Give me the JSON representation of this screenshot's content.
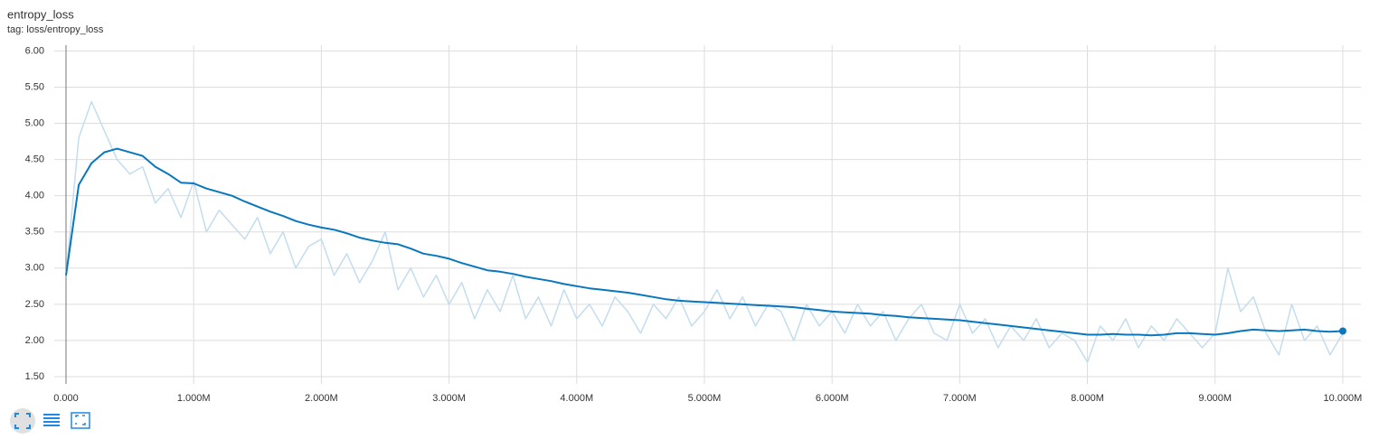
{
  "chart_data": {
    "type": "line",
    "title": "entropy_loss",
    "subtitle": "tag: loss/entropy_loss",
    "x": [
      0,
      100000,
      200000,
      300000,
      400000,
      500000,
      600000,
      700000,
      800000,
      900000,
      1000000,
      1100000,
      1200000,
      1300000,
      1400000,
      1500000,
      1600000,
      1700000,
      1800000,
      1900000,
      2000000,
      2100000,
      2200000,
      2300000,
      2400000,
      2500000,
      2600000,
      2700000,
      2800000,
      2900000,
      3000000,
      3100000,
      3200000,
      3300000,
      3400000,
      3500000,
      3600000,
      3700000,
      3800000,
      3900000,
      4000000,
      4100000,
      4200000,
      4300000,
      4400000,
      4500000,
      4600000,
      4700000,
      4800000,
      4900000,
      5000000,
      5100000,
      5200000,
      5300000,
      5400000,
      5500000,
      5600000,
      5700000,
      5800000,
      5900000,
      6000000,
      6100000,
      6200000,
      6300000,
      6400000,
      6500000,
      6600000,
      6700000,
      6800000,
      6900000,
      7000000,
      7100000,
      7200000,
      7300000,
      7400000,
      7500000,
      7600000,
      7700000,
      7800000,
      7900000,
      8000000,
      8100000,
      8200000,
      8300000,
      8400000,
      8500000,
      8600000,
      8700000,
      8800000,
      8900000,
      9000000,
      9100000,
      9200000,
      9300000,
      9400000,
      9500000,
      9600000,
      9700000,
      9800000,
      9900000,
      10000000
    ],
    "series": [
      {
        "color": "#c3ddee",
        "values": [
          2.9,
          4.8,
          5.3,
          4.9,
          4.5,
          4.3,
          4.4,
          3.9,
          4.1,
          3.7,
          4.2,
          3.5,
          3.8,
          3.6,
          3.4,
          3.7,
          3.2,
          3.5,
          3.0,
          3.3,
          3.4,
          2.9,
          3.2,
          2.8,
          3.1,
          3.5,
          2.7,
          3.0,
          2.6,
          2.9,
          2.5,
          2.8,
          2.3,
          2.7,
          2.4,
          2.9,
          2.3,
          2.6,
          2.2,
          2.7,
          2.3,
          2.5,
          2.2,
          2.6,
          2.4,
          2.1,
          2.5,
          2.3,
          2.6,
          2.2,
          2.4,
          2.7,
          2.3,
          2.6,
          2.2,
          2.5,
          2.4,
          2.0,
          2.5,
          2.2,
          2.4,
          2.1,
          2.5,
          2.2,
          2.4,
          2.0,
          2.3,
          2.5,
          2.1,
          2.0,
          2.5,
          2.1,
          2.3,
          1.9,
          2.2,
          2.0,
          2.3,
          1.9,
          2.1,
          2.0,
          1.7,
          2.2,
          2.0,
          2.3,
          1.9,
          2.2,
          2.0,
          2.3,
          2.1,
          1.9,
          2.1,
          3.0,
          2.4,
          2.6,
          2.1,
          1.8,
          2.5,
          2.0,
          2.2,
          1.8,
          2.1
        ]
      },
      {
        "color": "#0877bd",
        "values": [
          2.9,
          4.15,
          4.45,
          4.6,
          4.65,
          4.6,
          4.55,
          4.4,
          4.3,
          4.18,
          4.17,
          4.1,
          4.05,
          4.0,
          3.92,
          3.85,
          3.78,
          3.72,
          3.65,
          3.6,
          3.56,
          3.53,
          3.48,
          3.42,
          3.38,
          3.35,
          3.33,
          3.27,
          3.2,
          3.17,
          3.13,
          3.07,
          3.02,
          2.97,
          2.95,
          2.92,
          2.88,
          2.85,
          2.82,
          2.78,
          2.75,
          2.72,
          2.7,
          2.68,
          2.66,
          2.63,
          2.6,
          2.57,
          2.55,
          2.54,
          2.53,
          2.52,
          2.51,
          2.5,
          2.49,
          2.48,
          2.47,
          2.46,
          2.44,
          2.42,
          2.4,
          2.39,
          2.38,
          2.37,
          2.35,
          2.34,
          2.32,
          2.31,
          2.3,
          2.29,
          2.28,
          2.26,
          2.24,
          2.22,
          2.2,
          2.18,
          2.16,
          2.14,
          2.12,
          2.1,
          2.08,
          2.08,
          2.09,
          2.08,
          2.08,
          2.07,
          2.08,
          2.1,
          2.1,
          2.09,
          2.08,
          2.1,
          2.13,
          2.15,
          2.14,
          2.13,
          2.14,
          2.15,
          2.13,
          2.12,
          2.13
        ]
      }
    ],
    "xlim": [
      -92000,
      10142000
    ],
    "ylim": [
      1.4,
      6.08
    ],
    "xticks": [
      {
        "value": 0,
        "label": "0.000"
      },
      {
        "value": 1000000,
        "label": "1.000M"
      },
      {
        "value": 2000000,
        "label": "2.000M"
      },
      {
        "value": 3000000,
        "label": "3.000M"
      },
      {
        "value": 4000000,
        "label": "4.000M"
      },
      {
        "value": 5000000,
        "label": "5.000M"
      },
      {
        "value": 6000000,
        "label": "6.000M"
      },
      {
        "value": 7000000,
        "label": "7.000M"
      },
      {
        "value": 8000000,
        "label": "8.000M"
      },
      {
        "value": 9000000,
        "label": "9.000M"
      },
      {
        "value": 10000000,
        "label": "10.000M"
      }
    ],
    "yticks": [
      {
        "value": 1.5,
        "label": "1.50"
      },
      {
        "value": 2,
        "label": "2.00"
      },
      {
        "value": 2.5,
        "label": "2.50"
      },
      {
        "value": 3,
        "label": "3.00"
      },
      {
        "value": 3.5,
        "label": "3.50"
      },
      {
        "value": 4,
        "label": "4.00"
      },
      {
        "value": 4.5,
        "label": "4.50"
      },
      {
        "value": 5,
        "label": "5.00"
      },
      {
        "value": 5.5,
        "label": "5.50"
      },
      {
        "value": 6,
        "label": "6.00"
      }
    ],
    "grid": true
  }
}
